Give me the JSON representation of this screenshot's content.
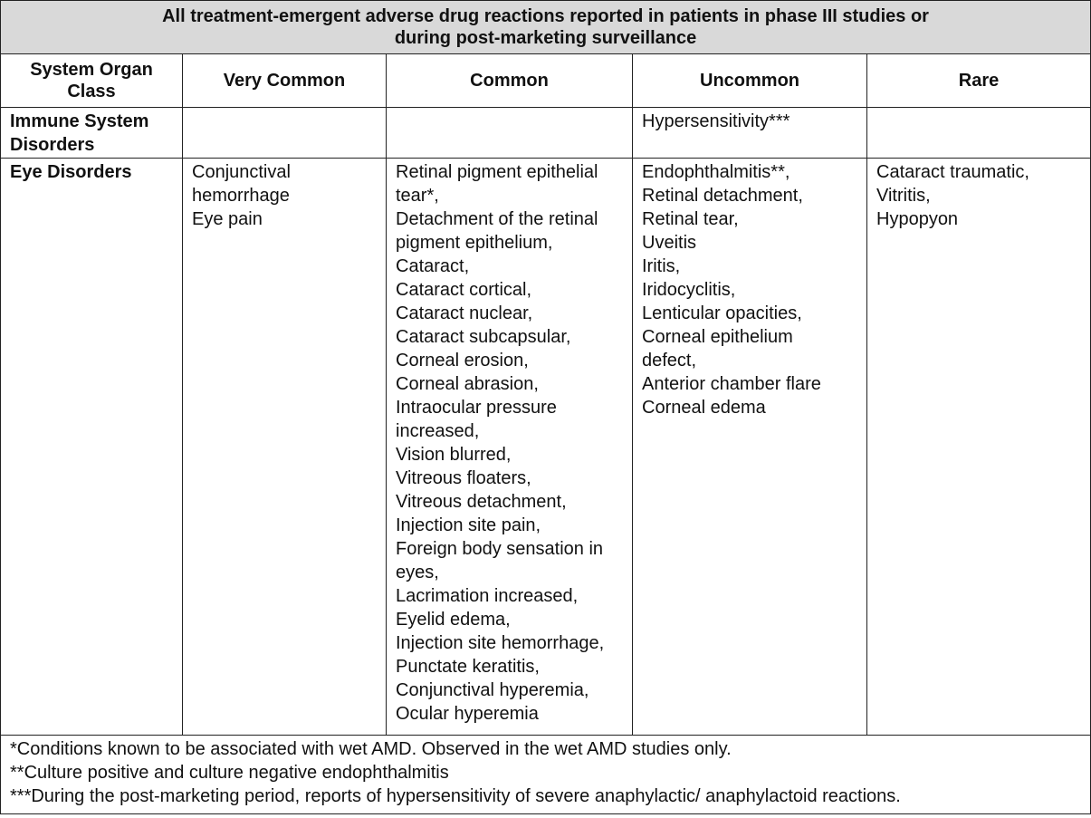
{
  "title": [
    "All treatment-emergent adverse drug reactions reported in patients in phase III studies or",
    "during post-marketing surveillance"
  ],
  "headers": [
    "System Organ Class",
    "Very Common",
    "Common",
    "Uncommon",
    "Rare"
  ],
  "rows": [
    {
      "soc": [
        "Immune System",
        "Disorders"
      ],
      "very_common": [],
      "common": [],
      "uncommon": [
        "Hypersensitivity***"
      ],
      "rare": []
    },
    {
      "soc": [
        "Eye Disorders"
      ],
      "very_common": [
        "Conjunctival",
        "hemorrhage",
        "Eye pain"
      ],
      "common": [
        "Retinal pigment epithelial",
        "tear*,",
        "Detachment of the retinal",
        "pigment epithelium,",
        "Cataract,",
        "Cataract cortical,",
        "Cataract nuclear,",
        "Cataract subcapsular,",
        "Corneal erosion,",
        "Corneal abrasion,",
        "Intraocular pressure",
        "increased,",
        "Vision blurred,",
        "Vitreous floaters,",
        "Vitreous detachment,",
        "Injection site pain,",
        "Foreign body sensation in",
        "eyes,",
        "Lacrimation increased,",
        "Eyelid edema,",
        "Injection site hemorrhage,",
        "Punctate keratitis,",
        "Conjunctival hyperemia,",
        "Ocular hyperemia"
      ],
      "uncommon": [
        "Endophthalmitis**,",
        "Retinal detachment,",
        "Retinal tear,",
        "Uveitis",
        "Iritis,",
        "Iridocyclitis,",
        "Lenticular opacities,",
        "Corneal epithelium",
        "defect,",
        "Anterior chamber flare",
        "Corneal edema"
      ],
      "rare": [
        "Cataract traumatic,",
        "Vitritis,",
        "Hypopyon"
      ]
    }
  ],
  "footnotes": [
    "*Conditions known to be associated with wet AMD. Observed in the wet AMD studies only.",
    "**Culture positive and culture negative endophthalmitis",
    "***During the post-marketing period, reports of hypersensitivity of severe anaphylactic/ anaphylactoid reactions."
  ],
  "colors": {
    "title_background": "#d9d9d9",
    "border": "#222222"
  }
}
